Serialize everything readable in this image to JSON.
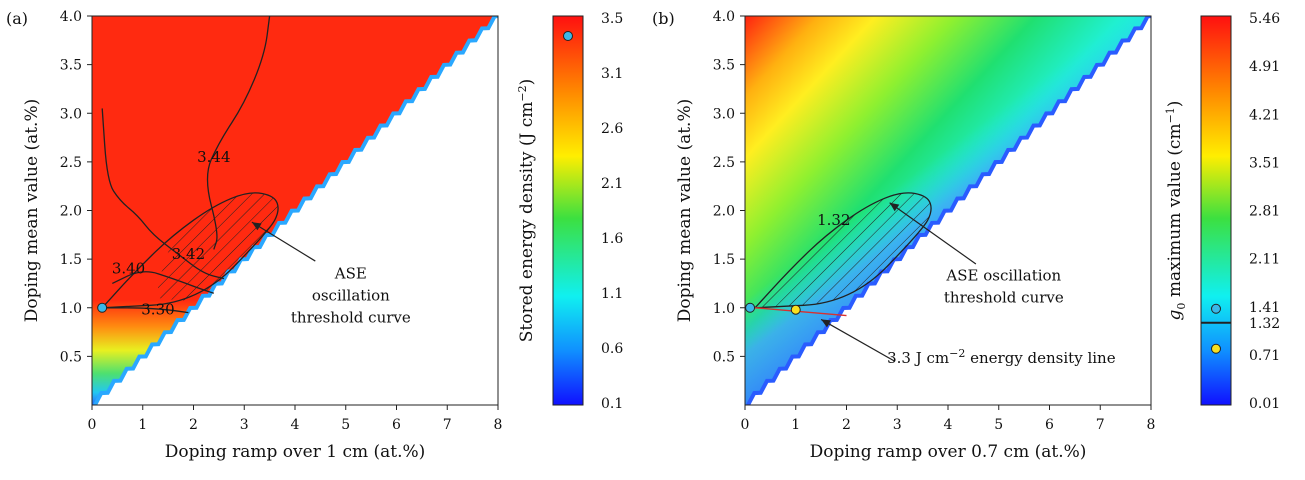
{
  "chart_data": [
    {
      "type": "heatmap",
      "panel_label": "(a)",
      "xlabel": "Doping ramp over 1 cm (at.%)",
      "ylabel": "Doping mean value (at.%)",
      "xlim": [
        0,
        8
      ],
      "ylim": [
        0,
        4
      ],
      "x_ticks": [
        "0",
        "1",
        "2",
        "3",
        "4",
        "5",
        "6",
        "7",
        "8"
      ],
      "y_ticks": [
        "0.5",
        "1.0",
        "1.5",
        "2.0",
        "2.5",
        "3.0",
        "3.5",
        "4.0"
      ],
      "colorbar": {
        "label": "Stored energy density (J cm",
        "label_sup": "−2",
        "label_end": ")",
        "ticks": [
          "3.5",
          "3.1",
          "2.6",
          "2.1",
          "1.6",
          "1.1",
          "0.6",
          "0.1"
        ],
        "range": [
          0.1,
          3.5
        ]
      },
      "contours": [
        {
          "label": "3.44"
        },
        {
          "label": "3.42"
        },
        {
          "label": "3.40"
        },
        {
          "label": "3.30"
        }
      ],
      "annotation": {
        "lines": [
          "ASE",
          "oscillation",
          "threshold curve"
        ]
      }
    },
    {
      "type": "heatmap",
      "panel_label": "(b)",
      "xlabel": "Doping ramp over 0.7 cm (at.%)",
      "ylabel": "Doping mean value (at.%)",
      "xlim": [
        0,
        8
      ],
      "ylim": [
        0,
        4
      ],
      "x_ticks": [
        "0",
        "1",
        "2",
        "3",
        "4",
        "5",
        "6",
        "7",
        "8"
      ],
      "y_ticks": [
        "0.5",
        "1.0",
        "1.5",
        "2.0",
        "2.5",
        "3.0",
        "3.5",
        "4.0"
      ],
      "colorbar": {
        "label_var": "g",
        "label_sub": "0",
        "label": " maximum value (cm",
        "label_sup": "−1",
        "label_end": ")",
        "ticks": [
          "5.46",
          "4.91",
          "4.21",
          "3.51",
          "2.81",
          "2.11",
          "1.41",
          "1.32",
          "0.71",
          "0.01"
        ],
        "range": [
          0.01,
          5.46
        ],
        "marked_value": "1.32"
      },
      "contours": [
        {
          "label": "1.32"
        }
      ],
      "annotations": [
        {
          "lines": [
            "ASE oscillation",
            "threshold curve"
          ]
        },
        {
          "text": "3.3 J cm",
          "sup": "−2",
          "text_end": " energy density line"
        }
      ]
    }
  ]
}
